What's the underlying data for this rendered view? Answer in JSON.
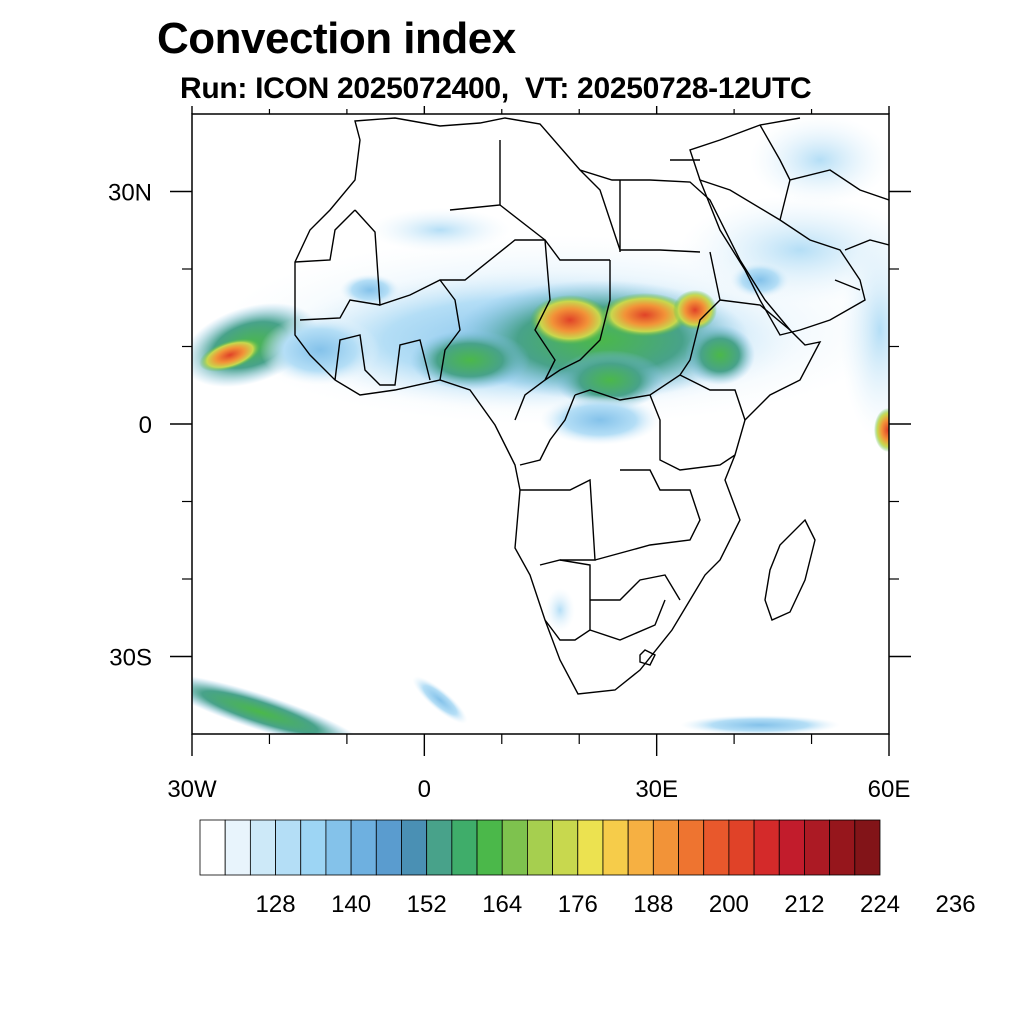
{
  "title": "Convection index",
  "subtitle": "Run: ICON 2025072400,  VT: 20250728-12UTC",
  "map": {
    "lon_range": [
      -30,
      60
    ],
    "lat_range": [
      -40,
      40
    ],
    "x_ticks": [
      {
        "lon": -30,
        "label": "30W"
      },
      {
        "lon": 0,
        "label": "0"
      },
      {
        "lon": 30,
        "label": "30E"
      },
      {
        "lon": 60,
        "label": "60E"
      }
    ],
    "y_ticks": [
      {
        "lat": 30,
        "label": "30N"
      },
      {
        "lat": 0,
        "label": "0"
      },
      {
        "lat": -30,
        "label": "30S"
      }
    ],
    "minor_lon_ticks": [
      -20,
      -10,
      10,
      20,
      40,
      50
    ],
    "minor_lat_ticks": [
      20,
      10,
      -10,
      -20
    ]
  },
  "colorbar": {
    "colors": [
      "#ffffff",
      "#e8f4fc",
      "#cde9f8",
      "#b4def6",
      "#9dd5f4",
      "#84c2ea",
      "#6eb0e0",
      "#5a9ccf",
      "#4a90b4",
      "#48a28a",
      "#3fad6a",
      "#4bb84a",
      "#7ec24e",
      "#a6cf4f",
      "#c8d84e",
      "#ece250",
      "#f6cc4a",
      "#f6b042",
      "#f29338",
      "#ee7430",
      "#e8582c",
      "#e04228",
      "#d42a2a",
      "#c21c2c",
      "#ac1a24",
      "#96161c",
      "#821418"
    ],
    "tick_labels": [
      "128",
      "140",
      "152",
      "164",
      "176",
      "188",
      "200",
      "212",
      "224",
      "236"
    ]
  }
}
